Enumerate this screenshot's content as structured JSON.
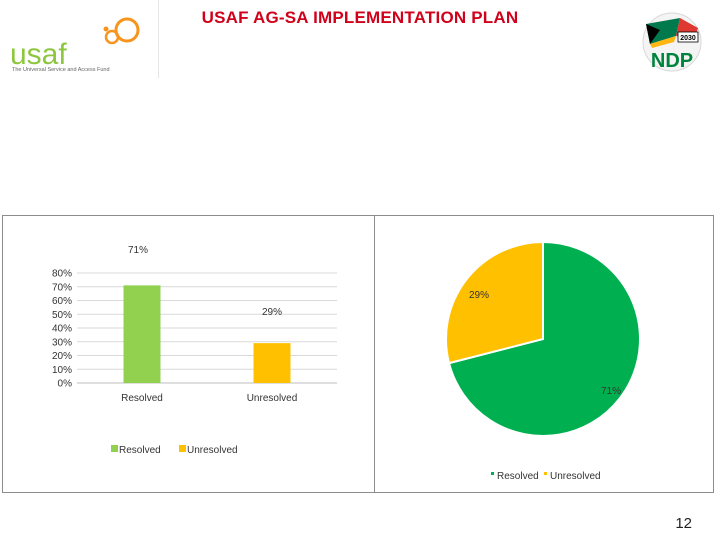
{
  "slide": {
    "title": "USAF AG-SA IMPLEMENTATION PLAN",
    "page_number": "12"
  },
  "logos": {
    "usaf_text": "usaf",
    "usaf_tagline": "The Universal Service and Access Fund",
    "ndp_text": "NDP",
    "ndp_year": "2030"
  },
  "colors": {
    "title": "#d0021b",
    "usaf_green": "#8dc63f",
    "usaf_orange": "#f7941d",
    "resolved_bar": "#92d050",
    "resolved_pie": "#00b050",
    "unresolved": "#ffc000"
  },
  "chart_data": [
    {
      "type": "bar",
      "categories": [
        "Resolved",
        "Unresolved"
      ],
      "values": [
        0.71,
        0.29
      ],
      "data_labels": [
        "71%",
        "29%"
      ],
      "ylim": [
        0,
        0.8
      ],
      "yticks": [
        "0%",
        "10%",
        "20%",
        "30%",
        "40%",
        "50%",
        "60%",
        "70%",
        "80%"
      ],
      "grid": true,
      "legend": [
        "Resolved",
        "Unresolved"
      ],
      "legend_position": "bottom"
    },
    {
      "type": "pie",
      "labels": [
        "Resolved",
        "Unresolved"
      ],
      "values": [
        0.71,
        0.29
      ],
      "data_labels": [
        "71%",
        "29%"
      ],
      "legend": [
        "Resolved",
        "Unresolved"
      ],
      "legend_position": "bottom"
    }
  ]
}
